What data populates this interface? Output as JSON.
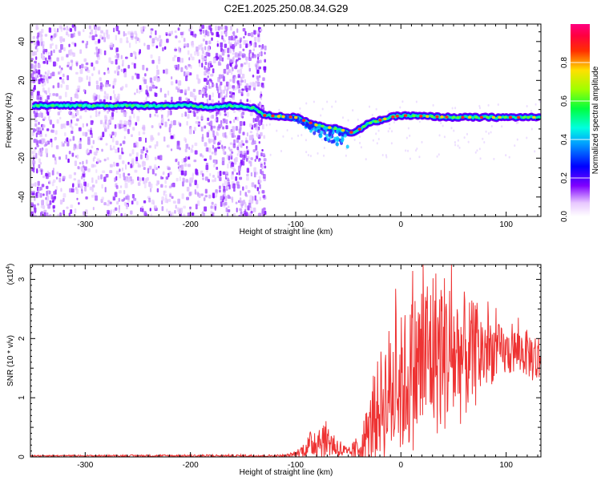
{
  "title": "C2E1.2025.250.08.34.G29",
  "chart_data": [
    {
      "type": "heatmap",
      "xlabel": "Height of straight line (km)",
      "ylabel": "Frequency (Hz)",
      "xlim": [
        -352,
        133
      ],
      "ylim": [
        -50,
        49
      ],
      "xticks": [
        -300,
        -200,
        -100,
        0,
        100
      ],
      "yticks": [
        -40,
        -20,
        0,
        20,
        40
      ],
      "xtick_labels": [
        "-300",
        "-200",
        "-100",
        "0",
        "100"
      ],
      "ytick_labels": [
        "-40",
        "-20",
        "0",
        "20",
        "40"
      ],
      "colorbar": {
        "label": "Normalized spectral amplitude",
        "range": [
          0,
          1
        ],
        "ticks": [
          0.0,
          0.2,
          0.4,
          0.6,
          0.8
        ],
        "tick_labels": [
          "0.0",
          "0.2",
          "0.4",
          "0.6",
          "0.8"
        ],
        "colormap": "rainbow (white-violet-blue-cyan-green-yellow-red-magenta)"
      },
      "ridge": {
        "x": [
          -350,
          -300,
          -250,
          -200,
          -180,
          -165,
          -140,
          -130,
          -100,
          -80,
          -60,
          -45,
          -30,
          -10,
          0,
          50,
          100,
          133
        ],
        "y": [
          7,
          7,
          7,
          7,
          6,
          7,
          6,
          2,
          1,
          -3,
          -5,
          -7,
          -2,
          1,
          2,
          1,
          1,
          1
        ]
      }
    },
    {
      "type": "line",
      "xlabel": "Height of straight line (km)",
      "ylabel": "SNR (10 * v/v)",
      "y_multiplier_label": "(x10",
      "y_multiplier_exp": "4",
      "xlim": [
        -352,
        133
      ],
      "ylim": [
        0,
        3.25
      ],
      "xticks": [
        -300,
        -200,
        -100,
        0,
        100
      ],
      "yticks": [
        0,
        1,
        2,
        3
      ],
      "xtick_labels": [
        "-300",
        "-200",
        "-100",
        "0",
        "100"
      ],
      "ytick_labels": [
        "0",
        "1",
        "2",
        "3"
      ],
      "series_color": "#ee3333",
      "envelope": {
        "x": [
          -352,
          -200,
          -110,
          -100,
          -90,
          -80,
          -70,
          -60,
          -50,
          -40,
          -30,
          -20,
          -10,
          0,
          10,
          20,
          30,
          40,
          50,
          60,
          70,
          80,
          90,
          100,
          110,
          120,
          133
        ],
        "base": [
          0.02,
          0.02,
          0.02,
          0.05,
          0.15,
          0.3,
          0.3,
          0.15,
          0.05,
          0.15,
          0.4,
          0.9,
          1.1,
          1.2,
          1.4,
          1.6,
          1.8,
          1.8,
          1.7,
          1.7,
          1.7,
          1.8,
          1.8,
          1.75,
          1.8,
          1.75,
          1.6
        ],
        "amp": [
          0.01,
          0.02,
          0.02,
          0.05,
          0.15,
          0.35,
          0.3,
          0.2,
          0.1,
          0.25,
          0.6,
          0.9,
          1.2,
          1.2,
          1.3,
          1.5,
          1.5,
          1.4,
          1.3,
          1.1,
          0.9,
          0.7,
          0.5,
          0.4,
          0.4,
          0.4,
          0.5
        ]
      }
    }
  ]
}
